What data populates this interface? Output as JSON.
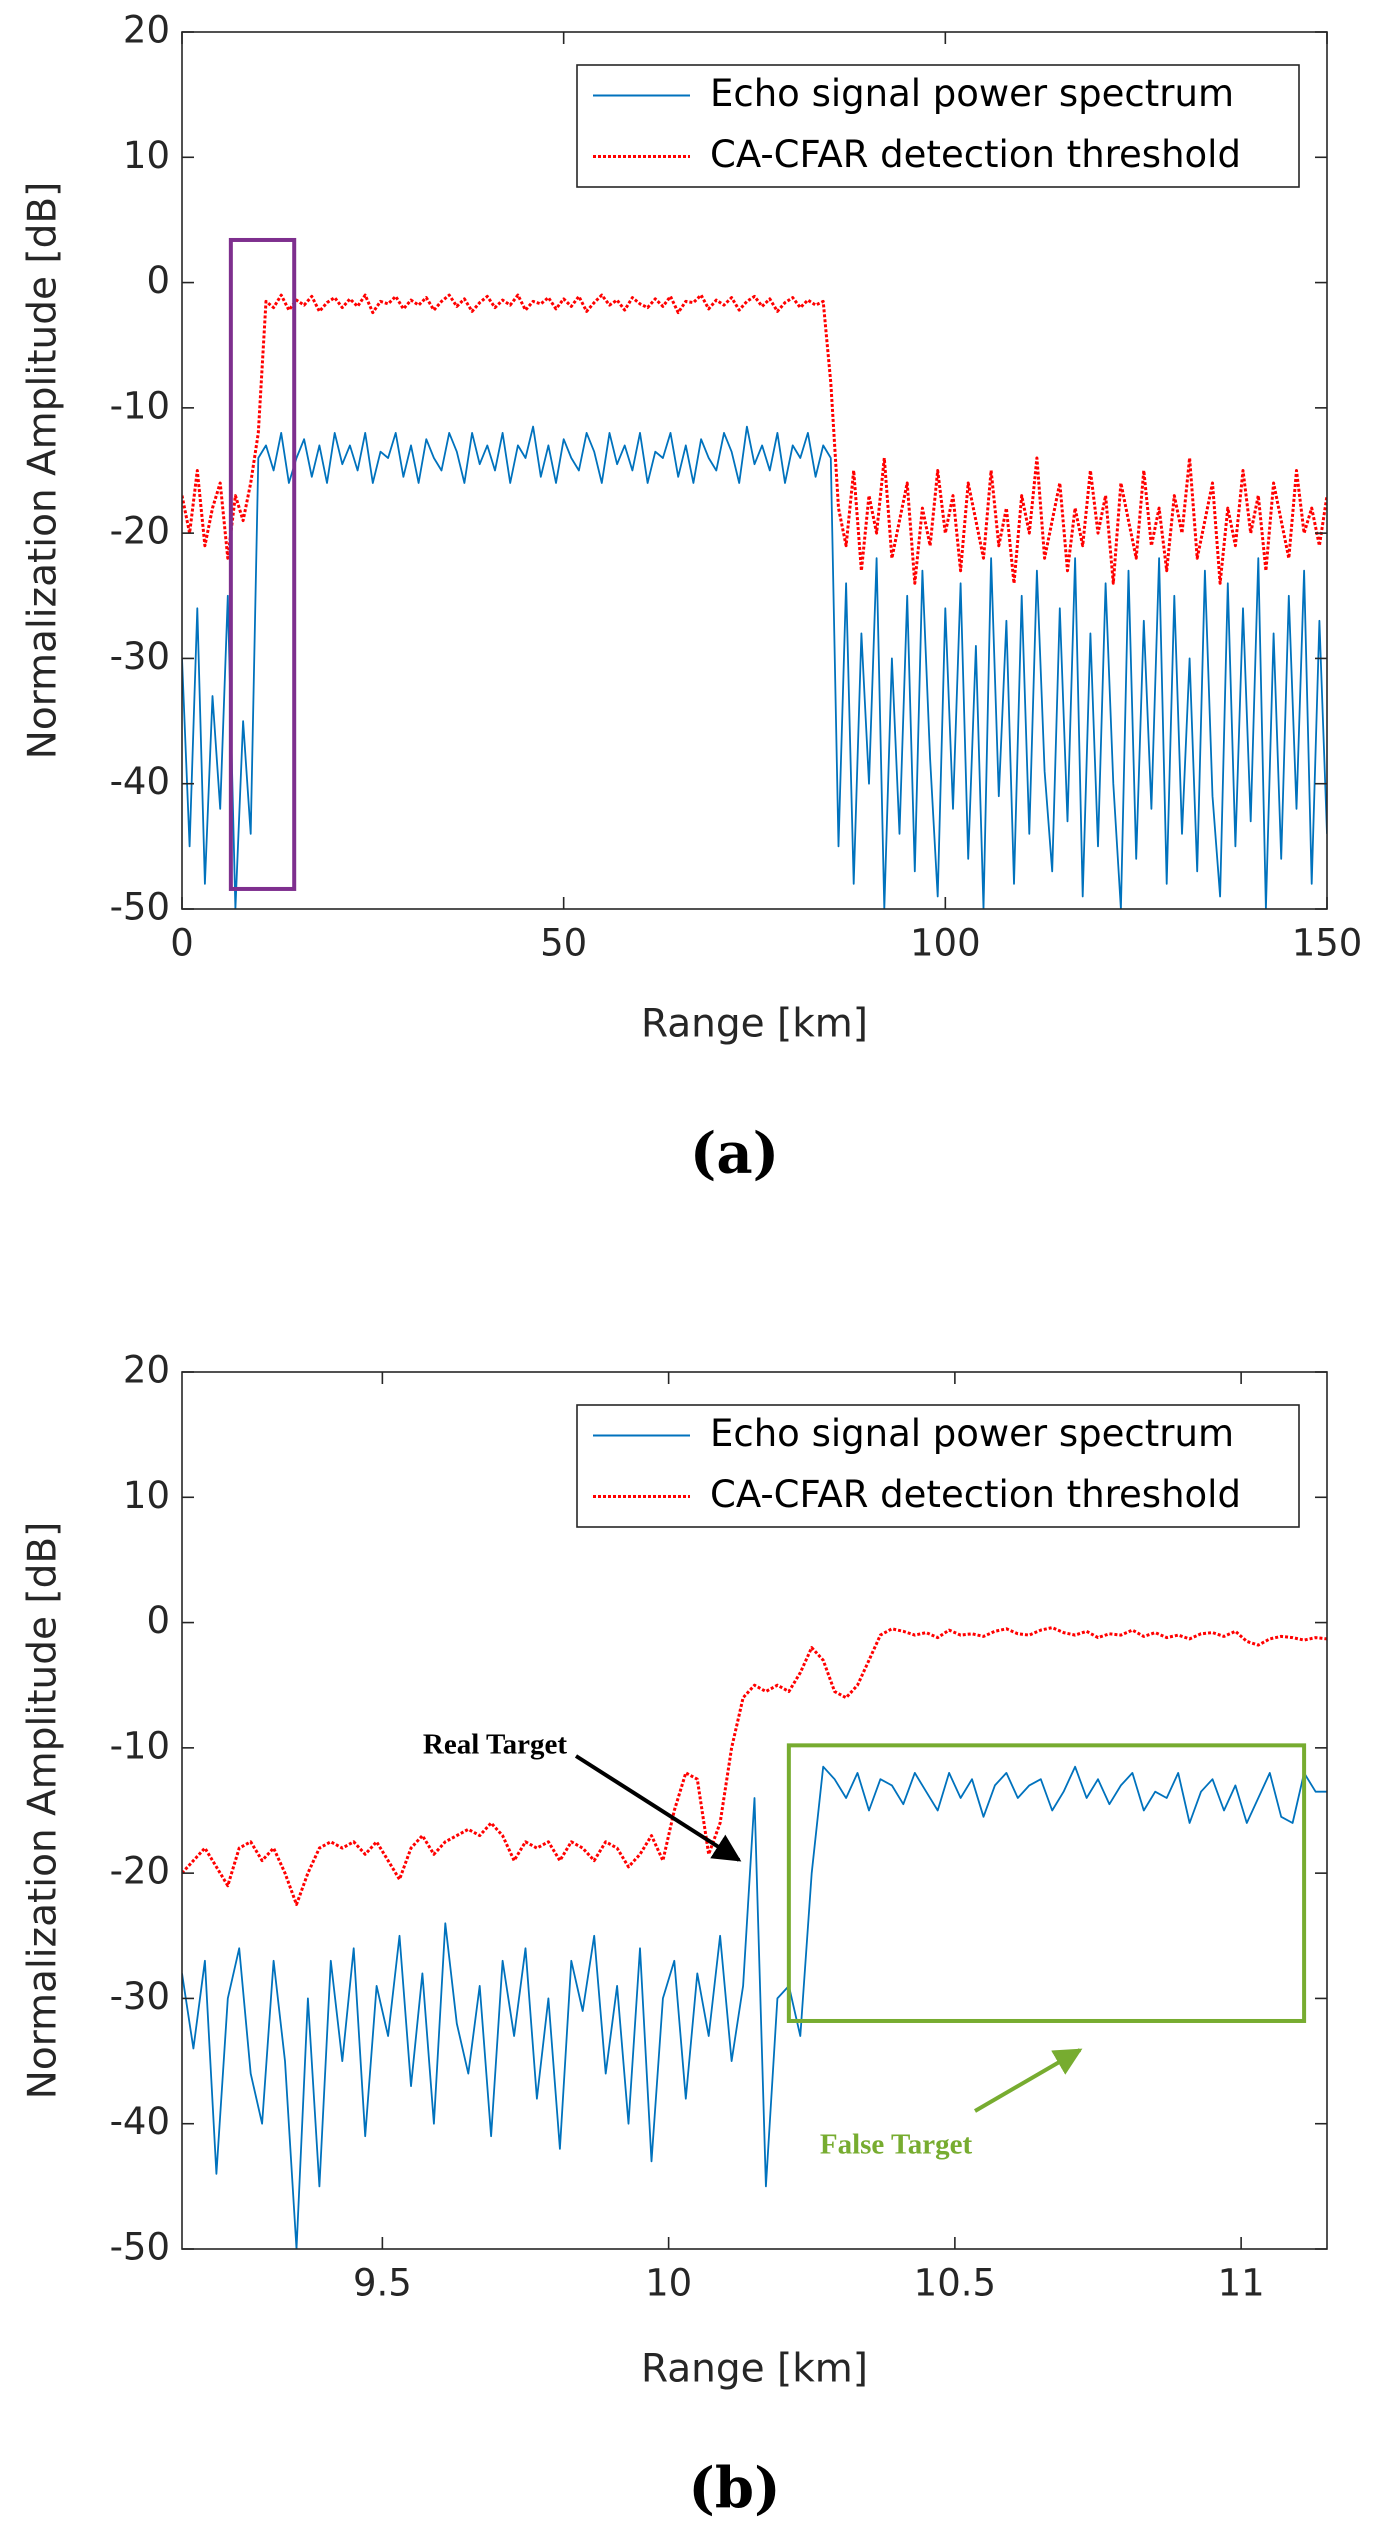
{
  "chart_data": [
    {
      "type": "line",
      "caption": "(a)",
      "xlabel": "Range [km]",
      "ylabel": "Normalization Amplitude [dB]",
      "xlim": [
        0,
        150
      ],
      "ylim": [
        -50,
        20
      ],
      "xticks": [
        0,
        50,
        100,
        150
      ],
      "yticks": [
        -50,
        -40,
        -30,
        -20,
        -10,
        0,
        10,
        20
      ],
      "legend": "upper right",
      "highlight": {
        "x": [
          6.4,
          14.7
        ],
        "y": [
          -48.4,
          3.4
        ],
        "color": "#7e2f8e"
      },
      "x": [
        0,
        1,
        2,
        3,
        4,
        5,
        6,
        7,
        8,
        9,
        10,
        11,
        12,
        13,
        14,
        15,
        16,
        17,
        18,
        19,
        20,
        21,
        22,
        23,
        24,
        25,
        26,
        27,
        28,
        29,
        30,
        31,
        32,
        33,
        34,
        35,
        36,
        37,
        38,
        39,
        40,
        41,
        42,
        43,
        44,
        45,
        46,
        47,
        48,
        49,
        50,
        51,
        52,
        53,
        54,
        55,
        56,
        57,
        58,
        59,
        60,
        61,
        62,
        63,
        64,
        65,
        66,
        67,
        68,
        69,
        70,
        71,
        72,
        73,
        74,
        75,
        76,
        77,
        78,
        79,
        80,
        81,
        82,
        83,
        84,
        85,
        86,
        87,
        88,
        89,
        90,
        91,
        92,
        93,
        94,
        95,
        96,
        97,
        98,
        99,
        100,
        101,
        102,
        103,
        104,
        105,
        106,
        107,
        108,
        109,
        110,
        111,
        112,
        113,
        114,
        115,
        116,
        117,
        118,
        119,
        120,
        121,
        122,
        123,
        124,
        125,
        126,
        127,
        128,
        129,
        130,
        131,
        132,
        133,
        134,
        135,
        136,
        137,
        138,
        139,
        140,
        141,
        142,
        143,
        144,
        145,
        146,
        147,
        148,
        149,
        150
      ],
      "series": [
        {
          "name": "Echo signal power spectrum",
          "color": "#0072bd",
          "style": "solid",
          "values": [
            -30,
            -45,
            -26,
            -48,
            -33,
            -42,
            -25,
            -50,
            -35,
            -44,
            -14,
            -13,
            -15,
            -12,
            -16,
            -14,
            -12.5,
            -15.5,
            -13,
            -16,
            -12,
            -14.5,
            -13,
            -15,
            -12,
            -16,
            -13.5,
            -14,
            -12,
            -15.5,
            -13,
            -16,
            -12.5,
            -14,
            -15,
            -12,
            -13.5,
            -16,
            -12,
            -14.5,
            -13,
            -15,
            -12,
            -16,
            -13,
            -14,
            -11.5,
            -15.5,
            -13,
            -16,
            -12.5,
            -14,
            -15,
            -12,
            -13.5,
            -16,
            -12,
            -14.5,
            -13,
            -15,
            -12,
            -16,
            -13.5,
            -14,
            -12,
            -15.5,
            -13,
            -16,
            -12.5,
            -14,
            -15,
            -12,
            -13.5,
            -16,
            -11.5,
            -14.5,
            -13,
            -15,
            -12,
            -16,
            -13,
            -14,
            -12,
            -15.5,
            -13,
            -14,
            -45,
            -24,
            -48,
            -28,
            -40,
            -22,
            -50,
            -30,
            -44,
            -25,
            -47,
            -23,
            -38,
            -49,
            -26,
            -42,
            -24,
            -46,
            -29,
            -50,
            -22,
            -41,
            -27,
            -48,
            -25,
            -44,
            -23,
            -39,
            -47,
            -26,
            -43,
            -22,
            -49,
            -28,
            -45,
            -24,
            -40,
            -50,
            -23,
            -46,
            -27,
            -42,
            -22,
            -48,
            -25,
            -44,
            -30,
            -47,
            -23,
            -41,
            -49,
            -24,
            -45,
            -26,
            -43,
            -22,
            -50,
            -28,
            -46,
            -25,
            -42,
            -23,
            -48,
            -27,
            -44
          ]
        },
        {
          "name": "CA-CFAR detection threshold",
          "color": "#ff0000",
          "style": "dotted",
          "values": [
            -17,
            -20,
            -15,
            -21,
            -18,
            -16,
            -22,
            -17,
            -19,
            -16,
            -12,
            -1.5,
            -2,
            -1,
            -2.2,
            -1.4,
            -1.8,
            -1.1,
            -2.3,
            -1.6,
            -1.2,
            -2,
            -1.3,
            -1.9,
            -1,
            -2.4,
            -1.5,
            -1.7,
            -1.1,
            -2.1,
            -1.4,
            -1.8,
            -1.2,
            -2.2,
            -1.5,
            -1,
            -1.9,
            -1.3,
            -2.3,
            -1.6,
            -1.1,
            -2,
            -1.4,
            -1.8,
            -1,
            -2.2,
            -1.5,
            -1.7,
            -1.2,
            -2.1,
            -1.3,
            -1.9,
            -1.1,
            -2.3,
            -1.6,
            -1,
            -1.8,
            -1.4,
            -2.2,
            -1.2,
            -1.7,
            -2,
            -1.3,
            -1.9,
            -1.1,
            -2.4,
            -1.5,
            -1.6,
            -1,
            -2.1,
            -1.4,
            -1.8,
            -1.2,
            -2.2,
            -1.5,
            -1.1,
            -1.9,
            -1.3,
            -2.3,
            -1.6,
            -1.2,
            -2,
            -1.4,
            -1.8,
            -1.5,
            -8,
            -18,
            -21,
            -15,
            -23,
            -17,
            -20,
            -14,
            -22,
            -19,
            -16,
            -24,
            -18,
            -21,
            -15,
            -20,
            -17,
            -23,
            -16,
            -19,
            -22,
            -15,
            -21,
            -18,
            -24,
            -17,
            -20,
            -14,
            -22,
            -19,
            -16,
            -23,
            -18,
            -21,
            -15,
            -20,
            -17,
            -24,
            -16,
            -19,
            -22,
            -15,
            -21,
            -18,
            -23,
            -17,
            -20,
            -14,
            -22,
            -19,
            -16,
            -24,
            -18,
            -21,
            -15,
            -20,
            -17,
            -23,
            -16,
            -19,
            -22,
            -15,
            -20,
            -18,
            -21,
            -17
          ]
        }
      ]
    },
    {
      "type": "line",
      "caption": "(b)",
      "xlabel": "Range [km]",
      "ylabel": "Normalization Amplitude [dB]",
      "xlim": [
        9.15,
        11.15
      ],
      "ylim": [
        -50,
        20
      ],
      "xticks": [
        9.5,
        10,
        10.5,
        11
      ],
      "yticks": [
        -50,
        -40,
        -30,
        -20,
        -10,
        0,
        10,
        20
      ],
      "legend": "upper right",
      "highlight": {
        "x": [
          10.21,
          11.11
        ],
        "y": [
          -31.8,
          -9.8
        ],
        "color": "#77ac30"
      },
      "annotations": [
        {
          "text": "Real Target",
          "color": "#000000"
        },
        {
          "text": "False Target",
          "color": "#77ac30"
        }
      ],
      "x": [
        9.15,
        9.17,
        9.19,
        9.21,
        9.23,
        9.25,
        9.27,
        9.29,
        9.31,
        9.33,
        9.35,
        9.37,
        9.39,
        9.41,
        9.43,
        9.45,
        9.47,
        9.49,
        9.51,
        9.53,
        9.55,
        9.57,
        9.59,
        9.61,
        9.63,
        9.65,
        9.67,
        9.69,
        9.71,
        9.73,
        9.75,
        9.77,
        9.79,
        9.81,
        9.83,
        9.85,
        9.87,
        9.89,
        9.91,
        9.93,
        9.95,
        9.97,
        9.99,
        10.01,
        10.03,
        10.05,
        10.07,
        10.09,
        10.11,
        10.13,
        10.15,
        10.17,
        10.19,
        10.21,
        10.23,
        10.25,
        10.27,
        10.29,
        10.31,
        10.33,
        10.35,
        10.37,
        10.39,
        10.41,
        10.43,
        10.45,
        10.47,
        10.49,
        10.51,
        10.53,
        10.55,
        10.57,
        10.59,
        10.61,
        10.63,
        10.65,
        10.67,
        10.69,
        10.71,
        10.73,
        10.75,
        10.77,
        10.79,
        10.81,
        10.83,
        10.85,
        10.87,
        10.89,
        10.91,
        10.93,
        10.95,
        10.97,
        10.99,
        11.01,
        11.03,
        11.05,
        11.07,
        11.09,
        11.11,
        11.13,
        11.15
      ],
      "series": [
        {
          "name": "Echo signal power spectrum",
          "color": "#0072bd",
          "style": "solid",
          "values": [
            -28,
            -34,
            -27,
            -44,
            -30,
            -26,
            -36,
            -40,
            -27,
            -35,
            -50,
            -30,
            -45,
            -27,
            -35,
            -26,
            -41,
            -29,
            -33,
            -25,
            -37,
            -28,
            -40,
            -24,
            -32,
            -36,
            -29,
            -41,
            -27,
            -33,
            -26,
            -38,
            -30,
            -42,
            -27,
            -31,
            -25,
            -36,
            -29,
            -40,
            -26,
            -43,
            -30,
            -27,
            -38,
            -28,
            -33,
            -25,
            -35,
            -29,
            -14,
            -45,
            -30,
            -29,
            -33,
            -20,
            -11.5,
            -12.5,
            -14,
            -12,
            -15,
            -12.5,
            -13,
            -14.5,
            -12,
            -13.5,
            -15,
            -12,
            -14,
            -12.5,
            -15.5,
            -13,
            -12,
            -14,
            -13,
            -12.5,
            -15,
            -13.5,
            -11.5,
            -14,
            -12.5,
            -14.5,
            -13,
            -12,
            -15,
            -13.5,
            -14,
            -12,
            -16,
            -13.5,
            -12.5,
            -15,
            -13,
            -16,
            -14,
            -12,
            -15.5,
            -16,
            -12,
            -13.5,
            -13.5
          ]
        },
        {
          "name": "CA-CFAR detection threshold",
          "color": "#ff0000",
          "style": "dotted",
          "values": [
            -20,
            -19,
            -18,
            -19.5,
            -21,
            -18,
            -17.5,
            -19,
            -18,
            -20,
            -22.5,
            -20,
            -18,
            -17.5,
            -18,
            -17.5,
            -18.5,
            -17.5,
            -19,
            -20.5,
            -18,
            -17,
            -18.5,
            -17.5,
            -17,
            -16.5,
            -17,
            -16,
            -17,
            -19,
            -17.5,
            -18,
            -17.5,
            -19,
            -17.5,
            -18,
            -19,
            -17.5,
            -18,
            -19.5,
            -18.5,
            -17,
            -19,
            -15,
            -12,
            -12.5,
            -18.5,
            -16,
            -10,
            -6,
            -5,
            -5.5,
            -5,
            -5.5,
            -4,
            -2,
            -3,
            -5.5,
            -6,
            -5,
            -3,
            -1,
            -0.5,
            -0.7,
            -1,
            -0.8,
            -1.2,
            -0.6,
            -1,
            -0.9,
            -1.1,
            -0.7,
            -0.5,
            -0.9,
            -1,
            -0.6,
            -0.4,
            -0.8,
            -1,
            -0.7,
            -1.2,
            -0.9,
            -1,
            -0.6,
            -1.1,
            -0.8,
            -1.2,
            -1,
            -1.3,
            -0.9,
            -0.8,
            -1.1,
            -0.7,
            -1.5,
            -1.8,
            -1.3,
            -1.1,
            -1.2,
            -1.4,
            -1.2,
            -1.3
          ]
        }
      ]
    }
  ]
}
